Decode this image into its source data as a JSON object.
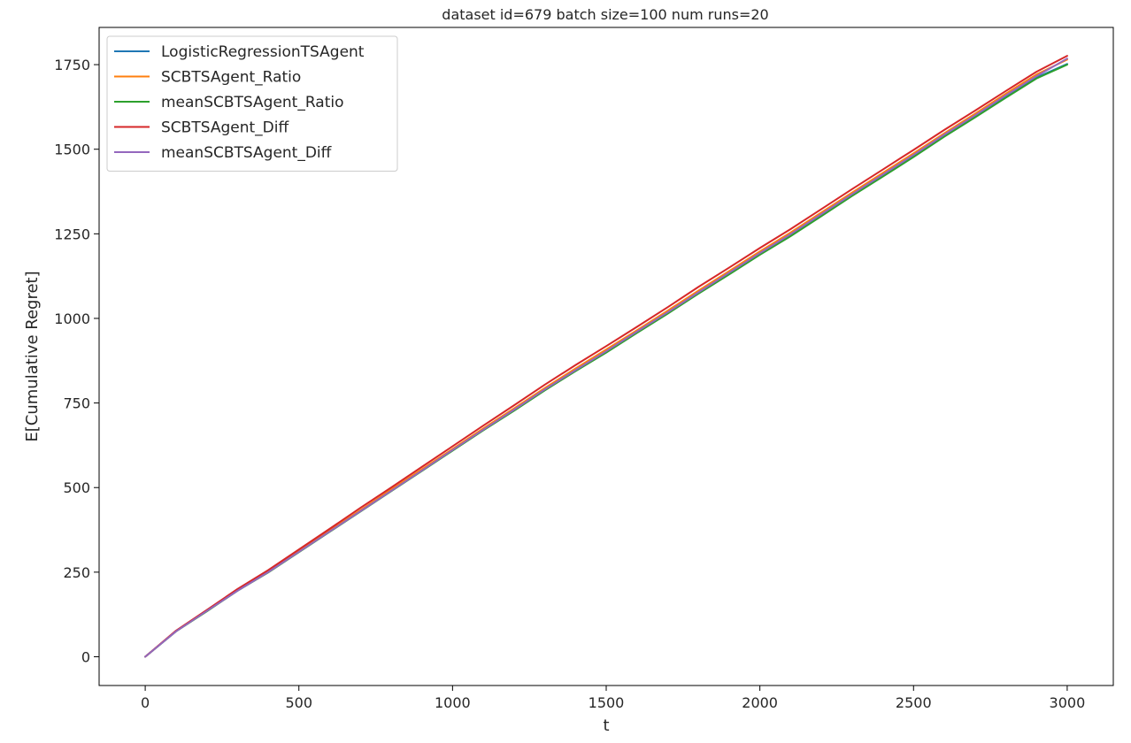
{
  "chart_data": {
    "type": "line",
    "title": "dataset id=679 batch size=100 num runs=20",
    "xlabel": "t",
    "ylabel": "E[Cumulative Regret]",
    "xlim": [
      -150,
      3150
    ],
    "ylim": [
      -85,
      1860
    ],
    "xticks": [
      0,
      500,
      1000,
      1500,
      2000,
      2500,
      3000
    ],
    "yticks": [
      0,
      250,
      500,
      750,
      1000,
      1250,
      1500,
      1750
    ],
    "grid": false,
    "legend_position": "upper left",
    "x": [
      0,
      100,
      200,
      300,
      400,
      500,
      600,
      700,
      800,
      900,
      1000,
      1100,
      1200,
      1300,
      1400,
      1500,
      1600,
      1700,
      1800,
      1900,
      2000,
      2100,
      2200,
      2300,
      2400,
      2500,
      2600,
      2700,
      2800,
      2900,
      3000
    ],
    "series": [
      {
        "name": "LogisticRegressionTSAgent",
        "color": "#1f77b4",
        "values": [
          0,
          75,
          135,
          195,
          250,
          310,
          370,
          430,
          490,
          550,
          610,
          670,
          728,
          788,
          845,
          900,
          958,
          1015,
          1075,
          1132,
          1190,
          1245,
          1305,
          1365,
          1422,
          1480,
          1540,
          1597,
          1655,
          1712,
          1752
        ]
      },
      {
        "name": "SCBTSAgent_Ratio",
        "color": "#ff7f0e",
        "values": [
          0,
          76,
          136,
          197,
          252,
          313,
          373,
          433,
          494,
          554,
          614,
          675,
          734,
          794,
          852,
          908,
          965,
          1023,
          1082,
          1140,
          1198,
          1254,
          1313,
          1372,
          1430,
          1488,
          1547,
          1605,
          1664,
          1721,
          1765
        ]
      },
      {
        "name": "meanSCBTSAgent_Ratio",
        "color": "#2ca02c",
        "values": [
          0,
          75,
          134,
          195,
          249,
          309,
          369,
          429,
          489,
          549,
          609,
          669,
          727,
          787,
          844,
          899,
          957,
          1014,
          1073,
          1130,
          1188,
          1243,
          1302,
          1362,
          1419,
          1477,
          1537,
          1594,
          1652,
          1709,
          1750
        ]
      },
      {
        "name": "SCBTSAgent_Diff",
        "color": "#d62728",
        "values": [
          0,
          77,
          138,
          200,
          256,
          317,
          378,
          440,
          500,
          561,
          622,
          683,
          743,
          804,
          862,
          918,
          975,
          1033,
          1093,
          1150,
          1208,
          1264,
          1323,
          1382,
          1440,
          1498,
          1557,
          1614,
          1672,
          1729,
          1776
        ]
      },
      {
        "name": "meanSCBTSAgent_Diff",
        "color": "#9467bd",
        "values": [
          0,
          75,
          135,
          195,
          250,
          310,
          370,
          430,
          490,
          550,
          611,
          671,
          730,
          790,
          847,
          903,
          961,
          1018,
          1077,
          1135,
          1193,
          1249,
          1308,
          1367,
          1425,
          1483,
          1543,
          1600,
          1659,
          1716,
          1768
        ]
      }
    ]
  }
}
